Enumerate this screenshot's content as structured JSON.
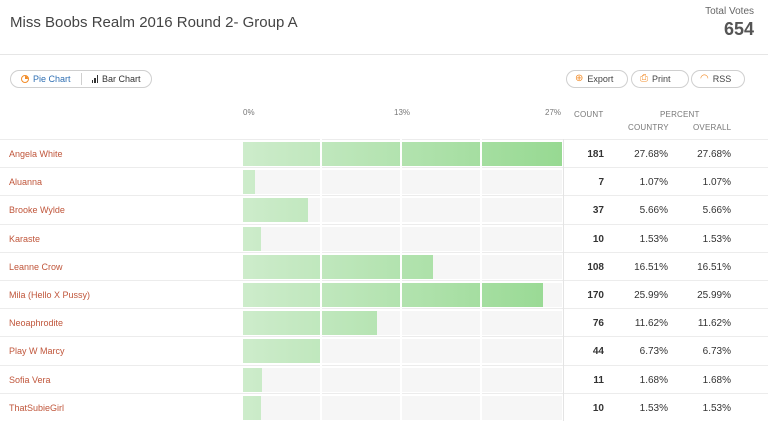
{
  "poll": {
    "title": "Miss Boobs Realm 2016 Round 2- Group A",
    "total_label": "Total Votes",
    "total_value": "654"
  },
  "toolbar": {
    "pie_chart_label": "Pie Chart",
    "bar_chart_label": "Bar Chart",
    "export_label": "Export",
    "print_label": "Print",
    "rss_label": "RSS"
  },
  "axis": {
    "ticks": [
      "0%",
      "13%",
      "27%"
    ],
    "max_percent": 27.68
  },
  "columns": {
    "count": "COUNT",
    "percent": "PERCENT",
    "country": "COUNTRY",
    "overall": "OVERALL"
  },
  "colors": {
    "bar_light": "#cdeccb",
    "bar_dark": "#97d992",
    "name_text": "#c0563b",
    "accent": "#f28c28"
  },
  "icons": [
    "pie-chart-icon",
    "bar-chart-icon",
    "export-icon",
    "print-icon",
    "rss-icon"
  ],
  "chart_data": {
    "type": "bar",
    "categories": [
      "Angela White",
      "Aluanna",
      "Brooke Wylde",
      "Karaste",
      "Leanne Crow",
      "Mila (Hello X Pussy)",
      "Neoaphrodite",
      "Play W Marcy",
      "Sofia Vera",
      "ThatSubieGirl"
    ],
    "values": [
      181,
      7,
      37,
      10,
      108,
      170,
      76,
      44,
      11,
      10
    ],
    "xlabel": "",
    "ylabel": ""
  },
  "rows": [
    {
      "name": "Angela White",
      "count": "181",
      "country": "27.68%",
      "overall": "27.68%",
      "percent": 27.68
    },
    {
      "name": "Aluanna",
      "count": "7",
      "country": "1.07%",
      "overall": "1.07%",
      "percent": 1.07
    },
    {
      "name": "Brooke Wylde",
      "count": "37",
      "country": "5.66%",
      "overall": "5.66%",
      "percent": 5.66
    },
    {
      "name": "Karaste",
      "count": "10",
      "country": "1.53%",
      "overall": "1.53%",
      "percent": 1.53
    },
    {
      "name": "Leanne Crow",
      "count": "108",
      "country": "16.51%",
      "overall": "16.51%",
      "percent": 16.51
    },
    {
      "name": "Mila (Hello X Pussy)",
      "count": "170",
      "country": "25.99%",
      "overall": "25.99%",
      "percent": 25.99
    },
    {
      "name": "Neoaphrodite",
      "count": "76",
      "country": "11.62%",
      "overall": "11.62%",
      "percent": 11.62
    },
    {
      "name": "Play W Marcy",
      "count": "44",
      "country": "6.73%",
      "overall": "6.73%",
      "percent": 6.73
    },
    {
      "name": "Sofia Vera",
      "count": "11",
      "country": "1.68%",
      "overall": "1.68%",
      "percent": 1.68
    },
    {
      "name": "ThatSubieGirl",
      "count": "10",
      "country": "1.53%",
      "overall": "1.53%",
      "percent": 1.53
    }
  ]
}
